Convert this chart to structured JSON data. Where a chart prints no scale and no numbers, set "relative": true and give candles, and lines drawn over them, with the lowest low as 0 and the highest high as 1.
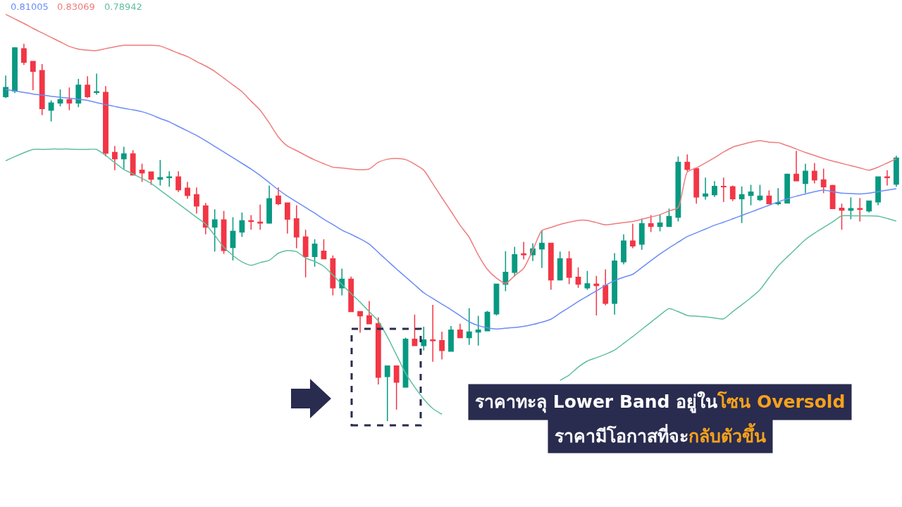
{
  "chart_data": {
    "type": "candlestick",
    "relative": true,
    "categories": [
      null,
      null,
      null,
      null,
      null,
      null,
      null,
      null,
      null,
      null,
      null,
      null,
      null,
      null,
      null,
      null,
      null,
      null,
      null,
      null,
      null,
      null,
      null,
      null,
      null,
      null,
      null,
      null,
      null,
      null,
      null,
      null,
      null,
      null,
      null,
      null,
      null,
      null,
      null,
      null,
      null,
      null,
      null,
      null,
      null,
      null,
      null,
      null,
      null,
      null,
      null,
      null,
      null,
      null,
      null,
      null,
      null,
      null,
      null,
      null,
      null,
      null,
      null,
      null,
      null,
      null,
      null,
      null,
      null,
      null,
      null,
      null,
      null,
      null,
      null,
      null,
      null,
      null,
      null,
      null,
      null,
      null,
      null,
      null,
      null,
      null,
      null,
      null,
      null,
      null,
      null,
      null,
      null,
      null,
      null,
      null,
      null,
      null,
      null
    ],
    "ohlc": [
      [
        0.86,
        0.916,
        0.856,
        0.884
      ],
      [
        0.875,
        0.991,
        0.869,
        0.989
      ],
      [
        0.987,
        1.0,
        0.944,
        0.951
      ],
      [
        0.953,
        0.953,
        0.877,
        0.927
      ],
      [
        0.929,
        0.946,
        0.811,
        0.828
      ],
      [
        0.824,
        0.85,
        0.794,
        0.843
      ],
      [
        0.843,
        0.879,
        0.834,
        0.852
      ],
      [
        0.852,
        0.884,
        0.824,
        0.843
      ],
      [
        0.843,
        0.907,
        0.832,
        0.89
      ],
      [
        0.89,
        0.914,
        0.856,
        0.86
      ],
      [
        0.871,
        0.921,
        0.865,
        0.873
      ],
      [
        0.871,
        0.888,
        0.701,
        0.71
      ],
      [
        0.712,
        0.729,
        0.665,
        0.695
      ],
      [
        0.695,
        0.727,
        0.667,
        0.708
      ],
      [
        0.708,
        0.718,
        0.652,
        0.652
      ],
      [
        0.665,
        0.682,
        0.634,
        0.658
      ],
      [
        0.66,
        0.66,
        0.626,
        0.641
      ],
      [
        0.641,
        0.692,
        0.624,
        0.645
      ],
      [
        0.645,
        0.662,
        0.621,
        0.647
      ],
      [
        0.647,
        0.662,
        0.607,
        0.613
      ],
      [
        0.617,
        0.634,
        0.589,
        0.598
      ],
      [
        0.6,
        0.619,
        0.55,
        0.57
      ],
      [
        0.57,
        0.578,
        0.495,
        0.514
      ],
      [
        0.514,
        0.561,
        0.449,
        0.533
      ],
      [
        0.533,
        0.557,
        0.443,
        0.452
      ],
      [
        0.46,
        0.54,
        0.426,
        0.503
      ],
      [
        0.501,
        0.553,
        0.488,
        0.531
      ],
      [
        0.531,
        0.546,
        0.507,
        0.529
      ],
      [
        0.527,
        0.574,
        0.507,
        0.525
      ],
      [
        0.525,
        0.624,
        0.523,
        0.589
      ],
      [
        0.596,
        0.619,
        0.572,
        0.576
      ],
      [
        0.578,
        0.578,
        0.497,
        0.535
      ],
      [
        0.536,
        0.572,
        0.458,
        0.488
      ],
      [
        0.488,
        0.507,
        0.381,
        0.436
      ],
      [
        0.436,
        0.482,
        0.409,
        0.469
      ],
      [
        0.45,
        0.482,
        0.43,
        0.43
      ],
      [
        0.43,
        0.439,
        0.333,
        0.353
      ],
      [
        0.353,
        0.404,
        0.333,
        0.376
      ],
      [
        0.376,
        0.383,
        0.29,
        0.29
      ],
      [
        0.29,
        0.29,
        0.234,
        0.279
      ],
      [
        0.279,
        0.318,
        0.258,
        0.258
      ],
      [
        0.258,
        0.275,
        0.097,
        0.116
      ],
      [
        0.118,
        0.146,
        0.0,
        0.146
      ],
      [
        0.146,
        0.146,
        0.03,
        0.103
      ],
      [
        0.09,
        0.221,
        0.09,
        0.217
      ],
      [
        0.217,
        0.282,
        0.2,
        0.2
      ],
      [
        0.2,
        0.25,
        0.187,
        0.215
      ],
      [
        0.215,
        0.308,
        0.157,
        0.213
      ],
      [
        0.213,
        0.237,
        0.163,
        0.187
      ],
      [
        0.185,
        0.252,
        0.185,
        0.241
      ],
      [
        0.241,
        0.258,
        0.221,
        0.221
      ],
      [
        0.221,
        0.299,
        0.202,
        0.236
      ],
      [
        0.236,
        0.279,
        0.2,
        0.241
      ],
      [
        0.239,
        0.292,
        0.239,
        0.288
      ],
      [
        0.284,
        0.364,
        0.28,
        0.363
      ],
      [
        0.363,
        0.45,
        0.344,
        0.394
      ],
      [
        0.394,
        0.462,
        0.383,
        0.441
      ],
      [
        0.443,
        0.475,
        0.428,
        0.441
      ],
      [
        0.441,
        0.471,
        0.424,
        0.456
      ],
      [
        0.456,
        0.505,
        0.406,
        0.471
      ],
      [
        0.471,
        0.471,
        0.348,
        0.374
      ],
      [
        0.374,
        0.449,
        0.374,
        0.43
      ],
      [
        0.43,
        0.45,
        0.363,
        0.381
      ],
      [
        0.381,
        0.407,
        0.353,
        0.363
      ],
      [
        0.353,
        0.398,
        0.348,
        0.364
      ],
      [
        0.363,
        0.385,
        0.28,
        0.359
      ],
      [
        0.359,
        0.402,
        0.307,
        0.312
      ],
      [
        0.312,
        0.445,
        0.282,
        0.424
      ],
      [
        0.422,
        0.495,
        0.415,
        0.477
      ],
      [
        0.477,
        0.523,
        0.458,
        0.464
      ],
      [
        0.469,
        0.536,
        0.454,
        0.523
      ],
      [
        0.523,
        0.546,
        0.501,
        0.516
      ],
      [
        0.516,
        0.548,
        0.503,
        0.525
      ],
      [
        0.516,
        0.563,
        0.516,
        0.542
      ],
      [
        0.54,
        0.701,
        0.529,
        0.686
      ],
      [
        0.686,
        0.707,
        0.662,
        0.667
      ],
      [
        0.669,
        0.669,
        0.576,
        0.594
      ],
      [
        0.596,
        0.645,
        0.587,
        0.602
      ],
      [
        0.6,
        0.636,
        0.594,
        0.622
      ],
      [
        0.622,
        0.645,
        0.581,
        0.621
      ],
      [
        0.621,
        0.624,
        0.583,
        0.589
      ],
      [
        0.589,
        0.622,
        0.525,
        0.6
      ],
      [
        0.598,
        0.626,
        0.572,
        0.607
      ],
      [
        0.587,
        0.626,
        0.583,
        0.596
      ],
      [
        0.596,
        0.611,
        0.576,
        0.576
      ],
      [
        0.576,
        0.617,
        0.572,
        0.579
      ],
      [
        0.578,
        0.656,
        0.578,
        0.654
      ],
      [
        0.654,
        0.716,
        0.636,
        0.637
      ],
      [
        0.63,
        0.682,
        0.604,
        0.662
      ],
      [
        0.662,
        0.684,
        0.63,
        0.639
      ],
      [
        0.639,
        0.669,
        0.604,
        0.621
      ],
      [
        0.624,
        0.626,
        0.563,
        0.563
      ],
      [
        0.564,
        0.576,
        0.507,
        0.559
      ],
      [
        0.559,
        0.593,
        0.535,
        0.563
      ],
      [
        0.563,
        0.591,
        0.529,
        0.561
      ],
      [
        0.557,
        0.583,
        0.553,
        0.583
      ],
      [
        0.581,
        0.647,
        0.572,
        0.647
      ],
      [
        0.647,
        0.665,
        0.624,
        0.645
      ],
      [
        0.628,
        0.703,
        0.621,
        0.697
      ]
    ],
    "series": [
      {
        "type": "line",
        "color": "#6b8cf7",
        "values": [
          0.879,
          0.875,
          0.871,
          0.867,
          0.864,
          0.861,
          0.858,
          0.856,
          0.853,
          0.85,
          0.844,
          0.839,
          0.834,
          0.829,
          0.825,
          0.82,
          0.812,
          0.802,
          0.793,
          0.781,
          0.769,
          0.757,
          0.743,
          0.728,
          0.713,
          0.698,
          0.683,
          0.668,
          0.651,
          0.632,
          0.613,
          0.596,
          0.581,
          0.566,
          0.551,
          0.535,
          0.521,
          0.506,
          0.495,
          0.483,
          0.469,
          0.447,
          0.425,
          0.403,
          0.382,
          0.361,
          0.34,
          0.325,
          0.31,
          0.295,
          0.279,
          0.263,
          0.253,
          0.247,
          0.244,
          0.246,
          0.248,
          0.251,
          0.256,
          0.262,
          0.27,
          0.286,
          0.301,
          0.317,
          0.331,
          0.345,
          0.36,
          0.372,
          0.381,
          0.389,
          0.407,
          0.425,
          0.443,
          0.459,
          0.474,
          0.489,
          0.499,
          0.509,
          0.519,
          0.527,
          0.536,
          0.545,
          0.554,
          0.563,
          0.572,
          0.581,
          0.589,
          0.596,
          0.602,
          0.608,
          0.612,
          0.608,
          0.604,
          0.603,
          0.602,
          0.604,
          0.608,
          0.612,
          0.616
        ]
      },
      {
        "type": "line",
        "color": "#f07c7c",
        "values": [
          1.078,
          1.066,
          1.054,
          1.041,
          1.029,
          1.017,
          1.005,
          0.993,
          0.986,
          0.983,
          0.982,
          0.987,
          0.992,
          0.996,
          0.996,
          0.996,
          0.996,
          0.994,
          0.985,
          0.975,
          0.966,
          0.953,
          0.941,
          0.927,
          0.909,
          0.891,
          0.873,
          0.848,
          0.824,
          0.79,
          0.753,
          0.729,
          0.717,
          0.704,
          0.692,
          0.682,
          0.673,
          0.671,
          0.668,
          0.666,
          0.668,
          0.686,
          0.694,
          0.696,
          0.693,
          0.681,
          0.665,
          0.629,
          0.592,
          0.556,
          0.519,
          0.487,
          0.44,
          0.402,
          0.379,
          0.365,
          0.385,
          0.405,
          0.453,
          0.505,
          0.513,
          0.521,
          0.527,
          0.532,
          0.532,
          0.526,
          0.52,
          0.523,
          0.526,
          0.529,
          0.535,
          0.541,
          0.547,
          0.557,
          0.566,
          0.66,
          0.671,
          0.684,
          0.698,
          0.713,
          0.726,
          0.733,
          0.739,
          0.743,
          0.739,
          0.738,
          0.73,
          0.721,
          0.712,
          0.704,
          0.696,
          0.689,
          0.683,
          0.677,
          0.671,
          0.665,
          0.673,
          0.684,
          0.695
        ]
      },
      {
        "type": "line",
        "color": "#5fbf9f",
        "values": [
          0.69,
          0.701,
          0.711,
          0.72,
          0.72,
          0.721,
          0.721,
          0.721,
          0.72,
          0.72,
          0.72,
          0.704,
          0.685,
          0.667,
          0.655,
          0.643,
          0.63,
          0.612,
          0.594,
          0.576,
          0.558,
          0.54,
          0.522,
          0.492,
          0.461,
          0.439,
          0.422,
          0.413,
          0.42,
          0.426,
          0.445,
          0.452,
          0.449,
          0.432,
          0.423,
          0.41,
          0.387,
          0.362,
          0.338,
          0.315,
          0.29,
          0.265,
          0.223,
          0.175,
          0.127,
          0.09,
          0.058,
          0.033,
          0.018,
          null,
          null,
          null,
          null,
          null,
          null,
          null,
          null,
          null,
          null,
          null,
          null,
          0.108,
          0.122,
          0.143,
          0.159,
          0.168,
          0.177,
          0.188,
          0.206,
          0.224,
          0.243,
          0.262,
          0.281,
          0.298,
          0.29,
          0.28,
          0.278,
          0.276,
          0.273,
          0.271,
          0.29,
          0.308,
          0.327,
          0.348,
          0.38,
          0.411,
          0.435,
          0.458,
          0.481,
          0.498,
          0.513,
          0.528,
          0.544,
          0.544,
          0.544,
          0.544,
          0.543,
          0.537,
          0.53
        ]
      }
    ],
    "annotations": [
      "0.81005",
      "0.83069",
      "0.78942",
      "ราคาทะลุ Lower Band อยู่ใน",
      "โซน Oversold",
      "ราคามีโอกาสที่จะ",
      "กลับตัวขึ้น"
    ]
  }
}
